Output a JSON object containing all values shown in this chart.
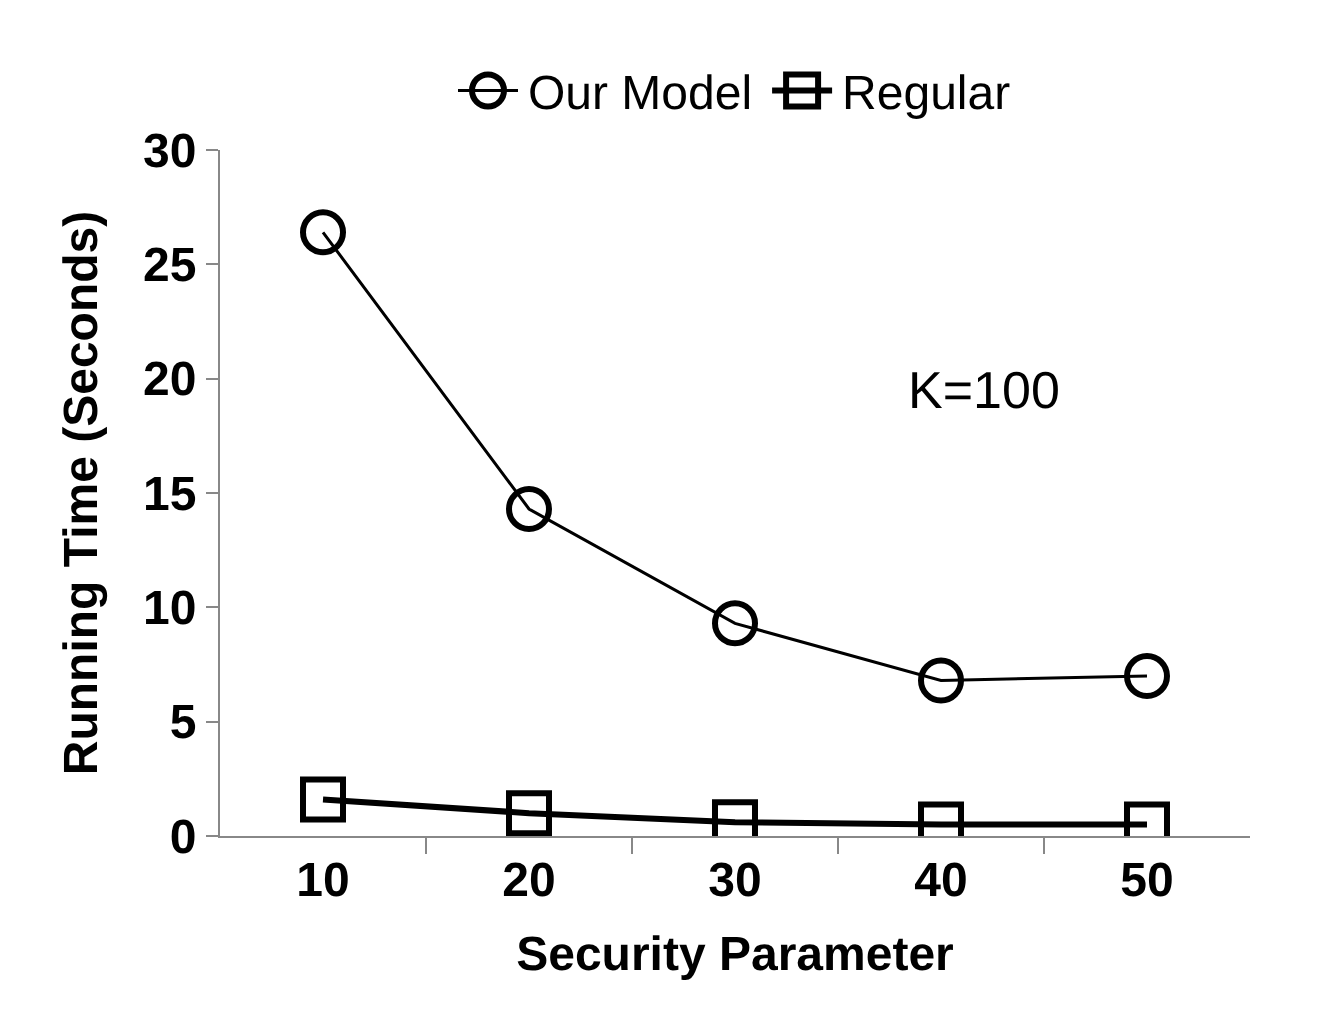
{
  "chart_data": {
    "type": "line",
    "xlabel": "Security Parameter",
    "ylabel": "Running Time (Seconds)",
    "categories": [
      "10",
      "20",
      "30",
      "40",
      "50"
    ],
    "series": [
      {
        "name": "Our Model",
        "color": "#000000",
        "marker": "circle",
        "values": [
          26.4,
          14.3,
          9.3,
          6.8,
          7.0
        ]
      },
      {
        "name": "Regular",
        "color": "#000000",
        "marker": "square",
        "values": [
          1.6,
          1.0,
          0.6,
          0.5,
          0.5
        ]
      }
    ],
    "ylim": [
      0,
      30
    ],
    "yticks": [
      0,
      5,
      10,
      15,
      20,
      25,
      30
    ],
    "legend": "top",
    "annotations": [
      "K=100"
    ]
  }
}
